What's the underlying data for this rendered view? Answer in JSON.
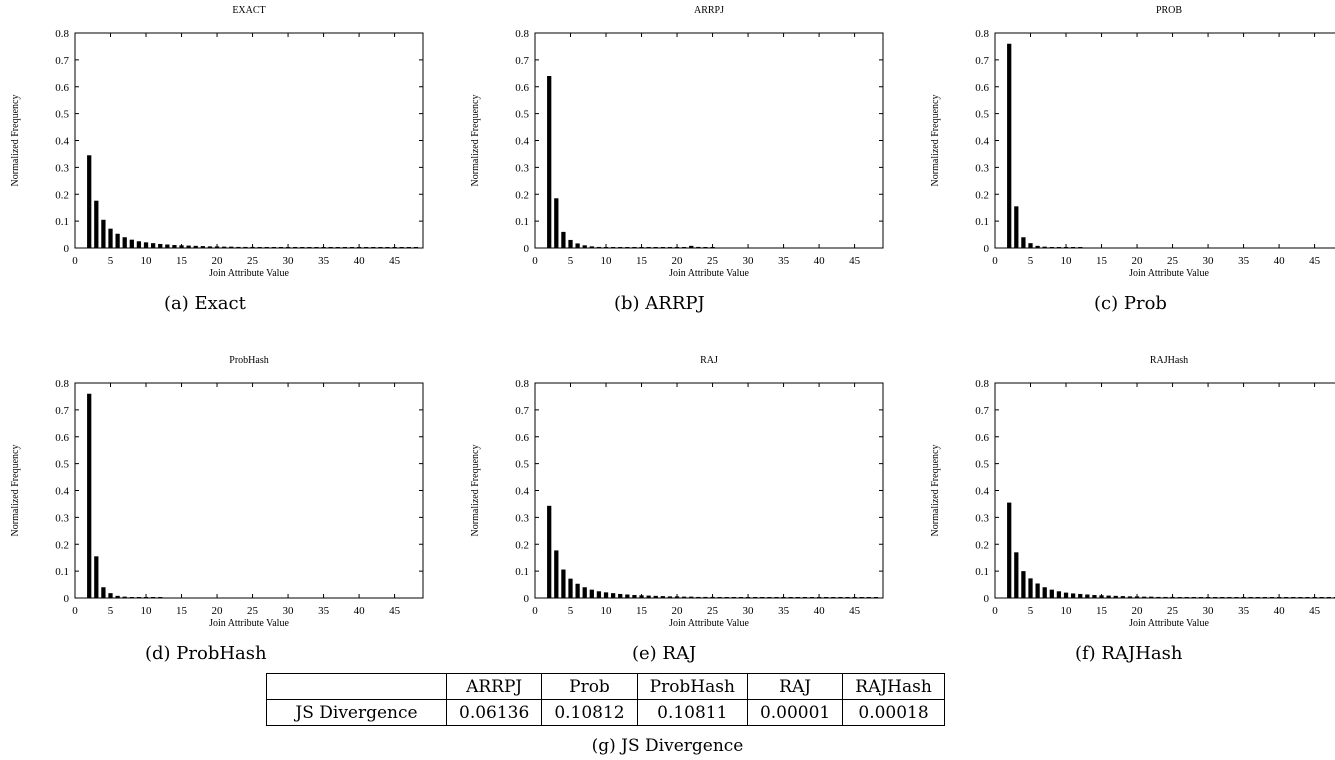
{
  "chart_data": [
    {
      "type": "bar",
      "title": "EXACT",
      "caption": "(a) Exact",
      "xlabel": "Join Attribute Value",
      "ylabel": "Normalized Frequency",
      "xlim": [
        0,
        49
      ],
      "ylim": [
        0,
        0.8
      ],
      "xticks": [
        "0",
        "5",
        "10",
        "15",
        "20",
        "25",
        "30",
        "35",
        "40",
        "45"
      ],
      "yticks": [
        "0",
        "0.1",
        "0.2",
        "0.3",
        "0.4",
        "0.5",
        "0.6",
        "0.7",
        "0.8"
      ],
      "x": [
        2,
        3,
        4,
        5,
        6,
        7,
        8,
        9,
        10,
        11,
        12,
        13,
        14,
        15,
        16,
        17,
        18,
        19,
        20,
        21,
        22,
        23,
        24,
        25,
        26,
        27,
        28,
        29,
        30,
        31,
        32,
        33,
        34,
        35,
        36,
        37,
        38,
        39,
        40,
        41,
        42,
        43,
        44,
        45,
        46,
        47,
        48
      ],
      "values": [
        0.345,
        0.176,
        0.105,
        0.072,
        0.053,
        0.04,
        0.031,
        0.025,
        0.021,
        0.018,
        0.015,
        0.013,
        0.011,
        0.01,
        0.009,
        0.008,
        0.007,
        0.006,
        0.006,
        0.005,
        0.005,
        0.004,
        0.004,
        0.004,
        0.003,
        0.003,
        0.003,
        0.003,
        0.002,
        0.002,
        0.002,
        0.002,
        0.002,
        0.002,
        0.002,
        0.001,
        0.001,
        0.001,
        0.001,
        0.001,
        0.001,
        0.001,
        0.001,
        0.001,
        0.001,
        0.001,
        0.001
      ]
    },
    {
      "type": "bar",
      "title": "ARRPJ",
      "caption": "(b) ARRPJ",
      "xlabel": "Join Attribute Value",
      "ylabel": "Normalized Frequency",
      "xlim": [
        0,
        49
      ],
      "ylim": [
        0,
        0.8
      ],
      "xticks": [
        "0",
        "5",
        "10",
        "15",
        "20",
        "25",
        "30",
        "35",
        "40",
        "45"
      ],
      "yticks": [
        "0",
        "0.1",
        "0.2",
        "0.3",
        "0.4",
        "0.5",
        "0.6",
        "0.7",
        "0.8"
      ],
      "x": [
        2,
        3,
        4,
        5,
        6,
        7,
        8,
        9,
        10,
        11,
        12,
        13,
        14,
        15,
        16,
        17,
        18,
        19,
        20,
        21,
        22,
        23,
        24,
        25
      ],
      "values": [
        0.64,
        0.185,
        0.06,
        0.03,
        0.017,
        0.01,
        0.006,
        0.004,
        0.003,
        0.002,
        0.002,
        0.001,
        0.001,
        0.001,
        0.001,
        0.001,
        0.001,
        0.001,
        0.001,
        0.001,
        0.008,
        0.004,
        0.001,
        0.001
      ]
    },
    {
      "type": "bar",
      "title": "PROB",
      "caption": "(c) Prob",
      "xlabel": "Join Attribute Value",
      "ylabel": "Normalized Frequency",
      "xlim": [
        0,
        49
      ],
      "ylim": [
        0,
        0.8
      ],
      "xticks": [
        "0",
        "5",
        "10",
        "15",
        "20",
        "25",
        "30",
        "35",
        "40",
        "45"
      ],
      "yticks": [
        "0",
        "0.1",
        "0.2",
        "0.3",
        "0.4",
        "0.5",
        "0.6",
        "0.7",
        "0.8"
      ],
      "x": [
        2,
        3,
        4,
        5,
        6,
        7,
        8,
        9,
        10,
        11,
        12
      ],
      "values": [
        0.76,
        0.155,
        0.04,
        0.018,
        0.008,
        0.005,
        0.003,
        0.002,
        0.001,
        0.001,
        0.001
      ]
    },
    {
      "type": "bar",
      "title": "ProbHash",
      "caption": "(d) ProbHash",
      "xlabel": "Join Attribute Value",
      "ylabel": "Normalized Frequency",
      "xlim": [
        0,
        49
      ],
      "ylim": [
        0,
        0.8
      ],
      "xticks": [
        "0",
        "5",
        "10",
        "15",
        "20",
        "25",
        "30",
        "35",
        "40",
        "45"
      ],
      "yticks": [
        "0",
        "0.1",
        "0.2",
        "0.3",
        "0.4",
        "0.5",
        "0.6",
        "0.7",
        "0.8"
      ],
      "x": [
        2,
        3,
        4,
        5,
        6,
        7,
        8,
        9,
        10,
        11,
        12
      ],
      "values": [
        0.76,
        0.155,
        0.04,
        0.018,
        0.008,
        0.005,
        0.003,
        0.002,
        0.001,
        0.001,
        0.001
      ]
    },
    {
      "type": "bar",
      "title": "RAJ",
      "caption": "(e) RAJ",
      "xlabel": "Join Attribute Value",
      "ylabel": "Normalized Frequency",
      "xlim": [
        0,
        49
      ],
      "ylim": [
        0,
        0.8
      ],
      "xticks": [
        "0",
        "5",
        "10",
        "15",
        "20",
        "25",
        "30",
        "35",
        "40",
        "45"
      ],
      "yticks": [
        "0",
        "0.1",
        "0.2",
        "0.3",
        "0.4",
        "0.5",
        "0.6",
        "0.7",
        "0.8"
      ],
      "x": [
        2,
        3,
        4,
        5,
        6,
        7,
        8,
        9,
        10,
        11,
        12,
        13,
        14,
        15,
        16,
        17,
        18,
        19,
        20,
        21,
        22,
        23,
        24,
        25,
        26,
        27,
        28,
        29,
        30,
        31,
        32,
        33,
        34,
        35,
        36,
        37,
        38,
        39,
        40,
        41,
        42,
        43,
        44,
        45,
        46,
        47,
        48
      ],
      "values": [
        0.343,
        0.177,
        0.106,
        0.072,
        0.053,
        0.04,
        0.031,
        0.025,
        0.021,
        0.018,
        0.015,
        0.013,
        0.011,
        0.01,
        0.009,
        0.008,
        0.007,
        0.006,
        0.006,
        0.005,
        0.005,
        0.004,
        0.004,
        0.004,
        0.003,
        0.003,
        0.003,
        0.003,
        0.002,
        0.002,
        0.002,
        0.002,
        0.002,
        0.002,
        0.002,
        0.001,
        0.001,
        0.001,
        0.001,
        0.001,
        0.001,
        0.001,
        0.001,
        0.001,
        0.001,
        0.001,
        0.001
      ]
    },
    {
      "type": "bar",
      "title": "RAJHash",
      "caption": "(f) RAJHash",
      "xlabel": "Join Attribute Value",
      "ylabel": "Normalized Frequency",
      "xlim": [
        0,
        49
      ],
      "ylim": [
        0,
        0.8
      ],
      "xticks": [
        "0",
        "5",
        "10",
        "15",
        "20",
        "25",
        "30",
        "35",
        "40",
        "45"
      ],
      "yticks": [
        "0",
        "0.1",
        "0.2",
        "0.3",
        "0.4",
        "0.5",
        "0.6",
        "0.7",
        "0.8"
      ],
      "x": [
        2,
        3,
        4,
        5,
        6,
        7,
        8,
        9,
        10,
        11,
        12,
        13,
        14,
        15,
        16,
        17,
        18,
        19,
        20,
        21,
        22,
        23,
        24,
        25,
        26,
        27,
        28,
        29,
        30,
        31,
        32,
        33,
        34,
        35,
        36,
        37,
        38,
        39,
        40,
        41,
        42,
        43,
        44,
        45,
        46,
        47,
        48
      ],
      "values": [
        0.355,
        0.17,
        0.1,
        0.073,
        0.054,
        0.04,
        0.031,
        0.025,
        0.02,
        0.017,
        0.015,
        0.013,
        0.011,
        0.01,
        0.009,
        0.008,
        0.007,
        0.006,
        0.006,
        0.005,
        0.005,
        0.004,
        0.004,
        0.004,
        0.003,
        0.003,
        0.003,
        0.003,
        0.002,
        0.002,
        0.002,
        0.002,
        0.002,
        0.002,
        0.002,
        0.001,
        0.001,
        0.001,
        0.001,
        0.001,
        0.001,
        0.001,
        0.001,
        0.001,
        0.001,
        0.001,
        0.001
      ]
    },
    {
      "type": "table",
      "caption": "(g) JS Divergence",
      "columns": [
        "",
        "ARRPJ",
        "Prob",
        "ProbHash",
        "RAJ",
        "RAJHash"
      ],
      "rows": [
        [
          "JS Divergence",
          "0.06136",
          "0.10812",
          "0.10811",
          "0.00001",
          "0.00018"
        ]
      ]
    }
  ]
}
